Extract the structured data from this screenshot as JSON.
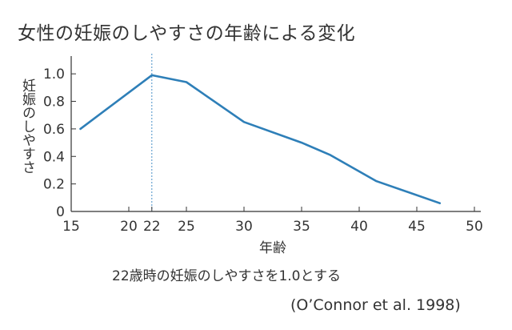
{
  "page": {
    "title": "女性の妊娠のしやすさの年齢による変化",
    "note": "22歳時の妊娠のしやすさを1.0とする",
    "source": "(O’Connor et al. 1998)"
  },
  "chart_data": {
    "type": "line",
    "title": "女性の妊娠のしやすさの年齢による変化",
    "xlabel": "年齢",
    "ylabel": "妊娠のしやすさ",
    "xlim": [
      15,
      50
    ],
    "ylim": [
      0,
      1.1
    ],
    "xticks": [
      15,
      20,
      22,
      25,
      30,
      35,
      40,
      45,
      50
    ],
    "yticks": [
      0,
      0.2,
      0.4,
      0.6,
      0.8,
      1.0
    ],
    "grid": false,
    "reference_line": {
      "x": 22,
      "style": "dotted"
    },
    "series": [
      {
        "color": "#2e7fb8",
        "x": [
          15.8,
          22,
          25,
          30,
          35,
          37.5,
          41.5,
          47
        ],
        "y": [
          0.6,
          0.99,
          0.94,
          0.65,
          0.5,
          0.41,
          0.22,
          0.06
        ]
      }
    ]
  }
}
